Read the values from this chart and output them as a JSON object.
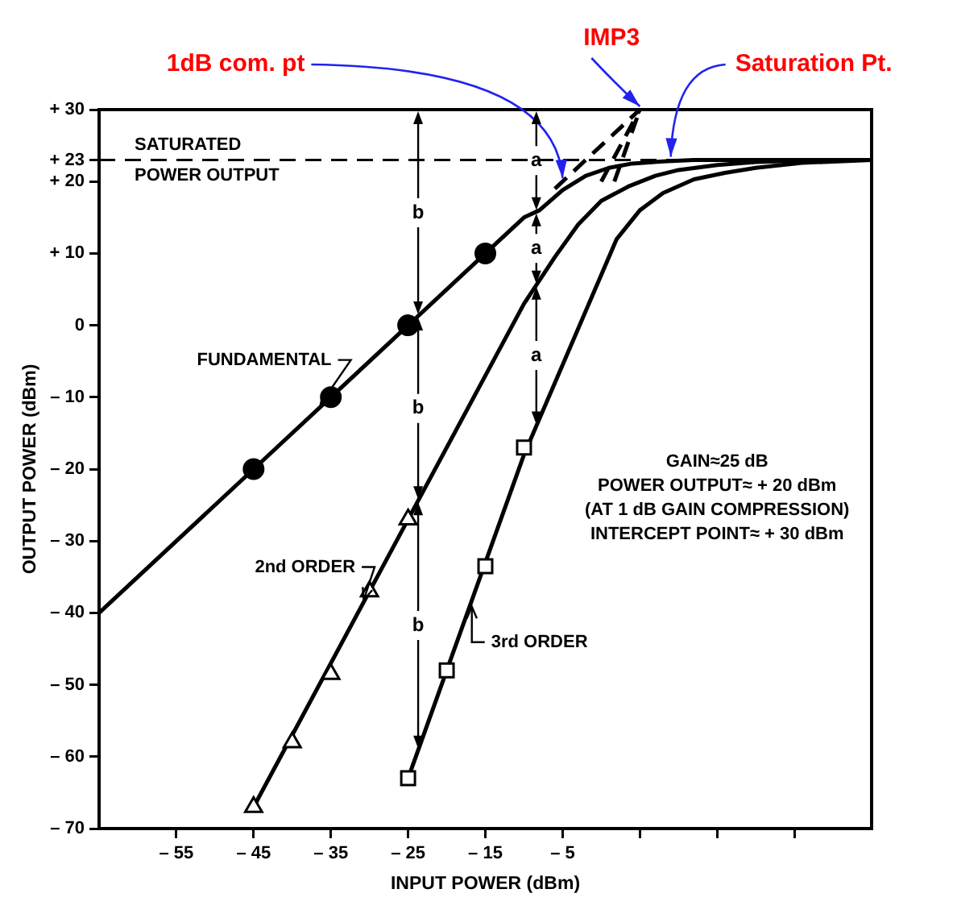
{
  "chart_data": {
    "type": "line",
    "xlabel": "INPUT POWER (dBm)",
    "ylabel": "OUTPUT POWER (dBm)",
    "xlim": [
      -65,
      35
    ],
    "xticks": [
      {
        "value": -55,
        "label": "– 55"
      },
      {
        "value": -45,
        "label": "– 45"
      },
      {
        "value": -35,
        "label": "– 35"
      },
      {
        "value": -25,
        "label": "– 25"
      },
      {
        "value": -15,
        "label": "– 15"
      },
      {
        "value": -5,
        "label": "– 5"
      },
      {
        "value": 5,
        "label": null
      },
      {
        "value": 15,
        "label": null
      },
      {
        "value": 25,
        "label": null
      }
    ],
    "ylim": [
      -70,
      30
    ],
    "yticks": [
      {
        "value": 30,
        "label": "+ 30"
      },
      {
        "value": 23,
        "label": "+ 23"
      },
      {
        "value": 20,
        "label": "+ 20"
      },
      {
        "value": 10,
        "label": "+ 10"
      },
      0,
      {
        "value": -10,
        "label": "– 10"
      },
      {
        "value": -20,
        "label": "– 20"
      },
      {
        "value": -30,
        "label": "– 30"
      },
      {
        "value": -40,
        "label": "– 40"
      },
      {
        "value": -50,
        "label": "– 50"
      },
      {
        "value": -60,
        "label": "– 60"
      },
      {
        "value": -70,
        "label": "– 70"
      }
    ],
    "legend": false,
    "series": [
      {
        "name": "FUNDAMENTAL",
        "type": "line",
        "color": "#000000",
        "marker": "none",
        "x": [
          -65,
          -45,
          -35,
          -25,
          -15,
          -10,
          -8,
          -5,
          -2,
          1,
          4,
          8,
          12,
          35
        ],
        "values": [
          -40,
          -20,
          -10,
          0,
          10,
          15,
          16,
          18.8,
          20.8,
          21.9,
          22.5,
          22.8,
          23,
          23
        ]
      },
      {
        "type": "scatter",
        "color": "#000000",
        "marker": "circle",
        "x": [
          -45,
          -35,
          -25,
          -15
        ],
        "values": [
          -20,
          -10,
          0,
          10
        ]
      },
      {
        "name": "2nd ORDER",
        "type": "line",
        "color": "#000000",
        "marker": "none",
        "x": [
          -45,
          -25,
          -10,
          -6,
          -3,
          0,
          3.5,
          7,
          10,
          15,
          20,
          28,
          35
        ],
        "values": [
          -67,
          -27,
          3,
          9.5,
          14,
          17.3,
          19.3,
          20.8,
          21.6,
          22.3,
          22.7,
          23,
          23
        ]
      },
      {
        "type": "scatter",
        "color": "#000000",
        "marker": "triangle",
        "x": [
          -45,
          -40,
          -35,
          -30,
          -25
        ],
        "values": [
          -67,
          -58,
          -48.5,
          -37,
          -27
        ]
      },
      {
        "name": "3rd ORDER",
        "type": "line",
        "color": "#000000",
        "marker": "none",
        "x": [
          -25,
          -10,
          -5,
          -2,
          2,
          5,
          8,
          12,
          16,
          20,
          26,
          35
        ],
        "values": [
          -63,
          -18,
          -5.5,
          2,
          12,
          16,
          18.4,
          20.3,
          21.2,
          21.9,
          22.6,
          23
        ]
      },
      {
        "type": "scatter",
        "color": "#000000",
        "marker": "square",
        "x": [
          -25,
          -20,
          -15,
          -10
        ],
        "values": [
          -63,
          -48,
          -33.5,
          -17
        ]
      },
      {
        "type": "line",
        "color": "#000000",
        "marker": "none",
        "line_style": "dashed",
        "x": [
          -6,
          5
        ],
        "values": [
          19,
          30
        ]
      },
      {
        "type": "line",
        "color": "#000000",
        "marker": "none",
        "line_style": "dashed",
        "x": [
          0,
          5
        ],
        "values": [
          20,
          30
        ]
      },
      {
        "type": "line",
        "color": "#000000",
        "marker": "none",
        "line_style": "dashed",
        "x": [
          1.7,
          5
        ],
        "values": [
          20,
          30
        ]
      }
    ],
    "ref_lines": [
      {
        "axis": "y",
        "value": 23,
        "label": "SATURATED POWER OUTPUT",
        "line_style": "dashed",
        "color": "#000000"
      }
    ],
    "annotations": [
      "GAIN≈25 dB",
      "POWER OUTPUT≈ + 20 dBm",
      "(AT 1 dB GAIN COMPRESSION)",
      "INTERCEPT POINT≈ + 30 dBm",
      {
        "text": "1dB com. pt",
        "x": -5,
        "y": 20
      },
      {
        "text": "IMP3",
        "x": 5,
        "y": 30
      },
      {
        "text": "Saturation Pt.",
        "x": 9,
        "y": 23
      },
      {
        "text": "b",
        "x": -23.7,
        "y": 1.3
      },
      {
        "text": "b",
        "x": -23.7,
        "y": -24.4
      },
      {
        "text": "b",
        "x": -23.7,
        "y": -59.1
      },
      {
        "text": "a",
        "x": -8.4,
        "y": 15.8
      },
      {
        "text": "a",
        "x": -8.4,
        "y": 5.6
      },
      {
        "text": "a",
        "x": -8.4,
        "y": -14
      }
    ]
  }
}
